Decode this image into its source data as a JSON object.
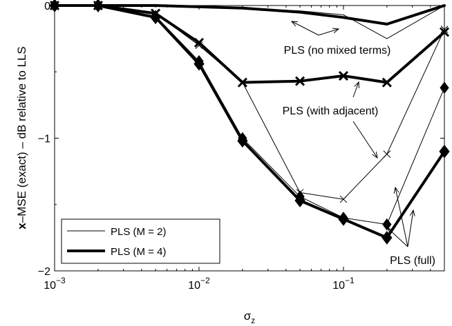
{
  "chart_data": {
    "type": "line",
    "xscale": "log",
    "xlim": [
      0.001,
      0.5
    ],
    "ylim": [
      -2,
      0
    ],
    "xlabel": "σ",
    "xlabel_sub": "z",
    "ylabel_bold": "x",
    "ylabel": "–MSE (exact) – dB relative to LLS",
    "xticks": [
      {
        "value": 0.001,
        "base": "10",
        "exp": "−3"
      },
      {
        "value": 0.01,
        "base": "10",
        "exp": "−2"
      },
      {
        "value": 0.1,
        "base": "10",
        "exp": "−1"
      }
    ],
    "yticks": [
      {
        "value": 0,
        "label": "0"
      },
      {
        "value": -1,
        "label": "−1"
      },
      {
        "value": -2,
        "label": "−2"
      }
    ],
    "grid": false,
    "legend_position": "bottom-left",
    "legend": [
      {
        "label": "PLS (M = 2)",
        "style": "thin"
      },
      {
        "label": "PLS (M = 4)",
        "style": "thick"
      }
    ],
    "series": [
      {
        "group": "no-mixed",
        "style": "thin",
        "marker": "none",
        "x": [
          0.001,
          0.002,
          0.005,
          0.01,
          0.02,
          0.05,
          0.1,
          0.2,
          0.5
        ],
        "y": [
          0,
          0,
          0,
          -0.01,
          -0.02,
          -0.04,
          -0.07,
          -0.25,
          0
        ]
      },
      {
        "group": "no-mixed",
        "style": "thick",
        "marker": "none",
        "x": [
          0.001,
          0.002,
          0.005,
          0.01,
          0.02,
          0.05,
          0.1,
          0.2,
          0.5
        ],
        "y": [
          0,
          0,
          0,
          -0.01,
          -0.02,
          -0.05,
          -0.09,
          -0.14,
          0
        ]
      },
      {
        "group": "with-adjacent",
        "style": "thin",
        "marker": "x",
        "x": [
          0.001,
          0.002,
          0.005,
          0.01,
          0.02,
          0.05,
          0.1,
          0.2,
          0.5
        ],
        "y": [
          0,
          0,
          -0.06,
          -0.3,
          -0.58,
          -1.41,
          -1.46,
          -1.12,
          -0.18
        ]
      },
      {
        "group": "with-adjacent",
        "style": "thick",
        "marker": "x",
        "x": [
          0.001,
          0.002,
          0.005,
          0.01,
          0.02,
          0.05,
          0.1,
          0.2,
          0.5
        ],
        "y": [
          0,
          0,
          -0.06,
          -0.28,
          -0.58,
          -0.57,
          -0.53,
          -0.58,
          -0.2
        ]
      },
      {
        "group": "full",
        "style": "thin",
        "marker": "diamond",
        "x": [
          0.001,
          0.002,
          0.005,
          0.01,
          0.02,
          0.05,
          0.1,
          0.2,
          0.5
        ],
        "y": [
          0,
          0,
          -0.08,
          -0.42,
          -1.0,
          -1.44,
          -1.6,
          -1.65,
          -0.62
        ]
      },
      {
        "group": "full",
        "style": "thick",
        "marker": "diamond",
        "x": [
          0.001,
          0.002,
          0.005,
          0.01,
          0.02,
          0.05,
          0.1,
          0.2,
          0.5
        ],
        "y": [
          0,
          0,
          -0.09,
          -0.44,
          -1.02,
          -1.47,
          -1.61,
          -1.75,
          -1.1
        ]
      }
    ],
    "annotations": [
      {
        "id": "no-mixed",
        "text": "PLS (no mixed terms)"
      },
      {
        "id": "with-adjacent",
        "text": "PLS (with adjacent)"
      },
      {
        "id": "full",
        "text": "PLS (full)"
      }
    ]
  }
}
